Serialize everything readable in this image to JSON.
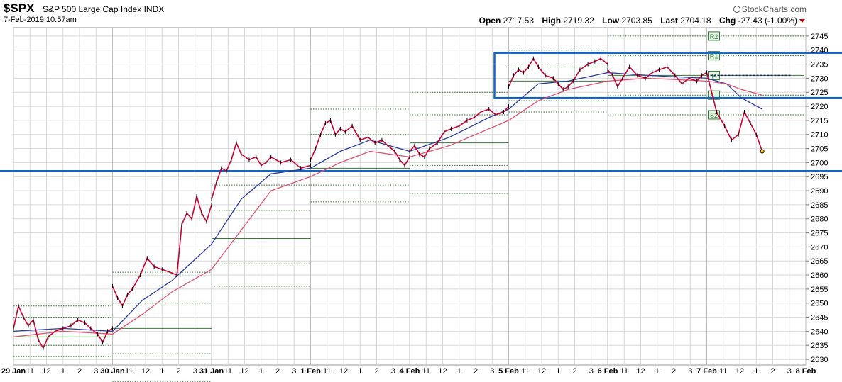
{
  "header": {
    "symbol": "$SPX",
    "name": "S&P 500 Large Cap Index",
    "exchange": "INDX",
    "timestamp": "7-Feb-2019 10:57am",
    "brand": "StockCharts.com",
    "open_label": "Open",
    "open": "2717.53",
    "high_label": "High",
    "high": "2719.32",
    "low_label": "Low",
    "low": "2703.85",
    "last_label": "Last",
    "last": "2704.18",
    "chg_label": "Chg",
    "chg": "-27.43 (-1.00%)"
  },
  "colors": {
    "price": "#cc0033",
    "ma_fast": "#2b3a9e",
    "ma_slow": "#e05070",
    "pivot": "#2e7d32",
    "box": "#1565c0",
    "grid": "#d8d8d8"
  },
  "chart_data": {
    "type": "line",
    "x_axis_labels": [
      "29 Jan",
      "11",
      "12",
      "1",
      "2",
      "3",
      "30 Jan",
      "11",
      "12",
      "1",
      "2",
      "3",
      "31 Jan",
      "11",
      "12",
      "1",
      "2",
      "3",
      "1 Feb",
      "11",
      "12",
      "1",
      "2",
      "3",
      "4 Feb",
      "11",
      "12",
      "1",
      "2",
      "3",
      "5 Feb",
      "11",
      "12",
      "1",
      "2",
      "3",
      "6 Feb",
      "11",
      "12",
      "1",
      "2",
      "3",
      "7 Feb",
      "11",
      "12",
      "1",
      "2",
      "3",
      "8 Feb"
    ],
    "y_ticks": [
      2630,
      2635,
      2640,
      2645,
      2650,
      2655,
      2660,
      2665,
      2670,
      2675,
      2680,
      2685,
      2690,
      2695,
      2700,
      2705,
      2710,
      2715,
      2720,
      2725,
      2730,
      2735,
      2740,
      2745
    ],
    "ylim": [
      2628,
      2748
    ],
    "grid": true,
    "series": [
      {
        "values": [
          [
            0,
            2641
          ],
          [
            0.05,
            2649
          ],
          [
            0.1,
            2645
          ],
          [
            0.15,
            2642
          ],
          [
            0.2,
            2644
          ],
          [
            0.25,
            2637
          ],
          [
            0.3,
            2634
          ],
          [
            0.35,
            2638
          ],
          [
            0.42,
            2640
          ],
          [
            0.5,
            2641
          ],
          [
            0.58,
            2642
          ],
          [
            0.65,
            2644
          ],
          [
            0.72,
            2643
          ],
          [
            0.78,
            2641
          ],
          [
            0.85,
            2639
          ],
          [
            0.9,
            2636
          ],
          [
            0.95,
            2640
          ],
          [
            1.0,
            2641
          ],
          [
            1.0,
            2656
          ],
          [
            1.05,
            2652
          ],
          [
            1.1,
            2649
          ],
          [
            1.15,
            2653
          ],
          [
            1.2,
            2655
          ],
          [
            1.28,
            2660
          ],
          [
            1.35,
            2666
          ],
          [
            1.42,
            2663
          ],
          [
            1.5,
            2662
          ],
          [
            1.58,
            2661
          ],
          [
            1.65,
            2660
          ],
          [
            1.7,
            2678
          ],
          [
            1.75,
            2682
          ],
          [
            1.8,
            2680
          ],
          [
            1.85,
            2688
          ],
          [
            1.9,
            2682
          ],
          [
            1.95,
            2679
          ],
          [
            2.0,
            2685
          ],
          [
            2.0,
            2687
          ],
          [
            2.05,
            2693
          ],
          [
            2.1,
            2698
          ],
          [
            2.15,
            2697
          ],
          [
            2.2,
            2701
          ],
          [
            2.25,
            2707
          ],
          [
            2.3,
            2703
          ],
          [
            2.38,
            2701
          ],
          [
            2.45,
            2702
          ],
          [
            2.5,
            2699
          ],
          [
            2.55,
            2700
          ],
          [
            2.6,
            2702
          ],
          [
            2.7,
            2700
          ],
          [
            2.8,
            2701
          ],
          [
            2.9,
            2698
          ],
          [
            3.0,
            2699
          ],
          [
            3.0,
            2701
          ],
          [
            3.05,
            2705
          ],
          [
            3.1,
            2710
          ],
          [
            3.15,
            2714
          ],
          [
            3.2,
            2715
          ],
          [
            3.25,
            2710
          ],
          [
            3.3,
            2712
          ],
          [
            3.35,
            2711
          ],
          [
            3.42,
            2713
          ],
          [
            3.5,
            2708
          ],
          [
            3.58,
            2709
          ],
          [
            3.65,
            2707
          ],
          [
            3.72,
            2708
          ],
          [
            3.78,
            2706
          ],
          [
            3.85,
            2704
          ],
          [
            3.9,
            2701
          ],
          [
            3.95,
            2699
          ],
          [
            4.0,
            2702
          ],
          [
            4.0,
            2704
          ],
          [
            4.05,
            2706
          ],
          [
            4.1,
            2703
          ],
          [
            4.15,
            2702
          ],
          [
            4.2,
            2705
          ],
          [
            4.28,
            2707
          ],
          [
            4.35,
            2711
          ],
          [
            4.42,
            2712
          ],
          [
            4.5,
            2713
          ],
          [
            4.58,
            2715
          ],
          [
            4.65,
            2716
          ],
          [
            4.72,
            2718
          ],
          [
            4.8,
            2719
          ],
          [
            4.87,
            2717
          ],
          [
            4.95,
            2718
          ],
          [
            5.0,
            2720
          ],
          [
            5.0,
            2727
          ],
          [
            5.05,
            2731
          ],
          [
            5.1,
            2733
          ],
          [
            5.15,
            2732
          ],
          [
            5.2,
            2734
          ],
          [
            5.25,
            2737
          ],
          [
            5.3,
            2734
          ],
          [
            5.37,
            2731
          ],
          [
            5.45,
            2730
          ],
          [
            5.5,
            2728
          ],
          [
            5.55,
            2726
          ],
          [
            5.6,
            2727
          ],
          [
            5.65,
            2729
          ],
          [
            5.72,
            2733
          ],
          [
            5.8,
            2735
          ],
          [
            5.87,
            2736
          ],
          [
            5.93,
            2737
          ],
          [
            6.0,
            2735
          ],
          [
            6.0,
            2733
          ],
          [
            6.05,
            2731
          ],
          [
            6.1,
            2727
          ],
          [
            6.15,
            2730
          ],
          [
            6.22,
            2734
          ],
          [
            6.3,
            2731
          ],
          [
            6.38,
            2730
          ],
          [
            6.45,
            2732
          ],
          [
            6.52,
            2733
          ],
          [
            6.6,
            2734
          ],
          [
            6.68,
            2731
          ],
          [
            6.75,
            2728
          ],
          [
            6.82,
            2730
          ],
          [
            6.9,
            2729
          ],
          [
            6.95,
            2731
          ],
          [
            7.0,
            2732
          ],
          [
            7.1,
            2718
          ],
          [
            7.18,
            2713
          ],
          [
            7.25,
            2708
          ],
          [
            7.32,
            2710
          ],
          [
            7.38,
            2718
          ],
          [
            7.44,
            2714
          ],
          [
            7.5,
            2710
          ],
          [
            7.56,
            2704
          ]
        ]
      },
      {
        "values": [
          [
            0,
            2640
          ],
          [
            0.5,
            2641
          ],
          [
            1.0,
            2640
          ],
          [
            1.3,
            2651
          ],
          [
            1.6,
            2658
          ],
          [
            2.0,
            2671
          ],
          [
            2.3,
            2687
          ],
          [
            2.6,
            2696
          ],
          [
            3.0,
            2698
          ],
          [
            3.3,
            2704
          ],
          [
            3.6,
            2708
          ],
          [
            4.0,
            2704
          ],
          [
            4.4,
            2709
          ],
          [
            4.8,
            2716
          ],
          [
            5.0,
            2719
          ],
          [
            5.3,
            2728
          ],
          [
            5.6,
            2729
          ],
          [
            6.0,
            2732
          ],
          [
            6.4,
            2731
          ],
          [
            7.0,
            2730
          ],
          [
            7.2,
            2728
          ],
          [
            7.35,
            2723
          ],
          [
            7.56,
            2719
          ]
        ]
      },
      {
        "values": [
          [
            0,
            2638
          ],
          [
            0.5,
            2640
          ],
          [
            1.0,
            2639
          ],
          [
            1.3,
            2646
          ],
          [
            1.6,
            2654
          ],
          [
            2.0,
            2662
          ],
          [
            2.3,
            2676
          ],
          [
            2.6,
            2690
          ],
          [
            3.0,
            2695
          ],
          [
            3.3,
            2700
          ],
          [
            3.6,
            2704
          ],
          [
            4.0,
            2702
          ],
          [
            4.4,
            2706
          ],
          [
            4.8,
            2712
          ],
          [
            5.0,
            2715
          ],
          [
            5.3,
            2722
          ],
          [
            5.6,
            2726
          ],
          [
            6.0,
            2729
          ],
          [
            6.4,
            2730
          ],
          [
            7.0,
            2729
          ],
          [
            7.2,
            2728
          ],
          [
            7.35,
            2726
          ],
          [
            7.56,
            2724
          ]
        ]
      }
    ],
    "pivot_levels": [
      {
        "day": 0,
        "P": 2638,
        "R1": 2645,
        "R2": 2649,
        "S1": 2635,
        "S2": 2631
      },
      {
        "day": 1,
        "P": 2641,
        "R1": 2650,
        "R2": 2661,
        "S1": 2632,
        "S2": 2622
      },
      {
        "day": 2,
        "P": 2673,
        "R1": 2683,
        "R2": 2692,
        "S1": 2664,
        "S2": 2656
      },
      {
        "day": 3,
        "P": 2698,
        "R1": 2710,
        "R2": 2719,
        "S1": 2692,
        "S2": 2686
      },
      {
        "day": 4,
        "P": 2707,
        "R1": 2717,
        "R2": 2725,
        "S1": 2699,
        "S2": 2689
      },
      {
        "day": 5,
        "P": 2729,
        "R1": 2734,
        "R2": 2740,
        "S1": 2722,
        "S2": 2718
      },
      {
        "day": 6,
        "P": 2731,
        "R1": 2738,
        "R2": 2745,
        "S1": 2724,
        "S2": 2717
      }
    ],
    "pivot_tags": [
      "R2",
      "R1",
      "P",
      "S1",
      "S2"
    ],
    "support_line": 2697,
    "resistance_box": {
      "x_start": 5.0,
      "x_end": 7.8,
      "y_top": 2739,
      "y_bottom": 2723
    }
  }
}
